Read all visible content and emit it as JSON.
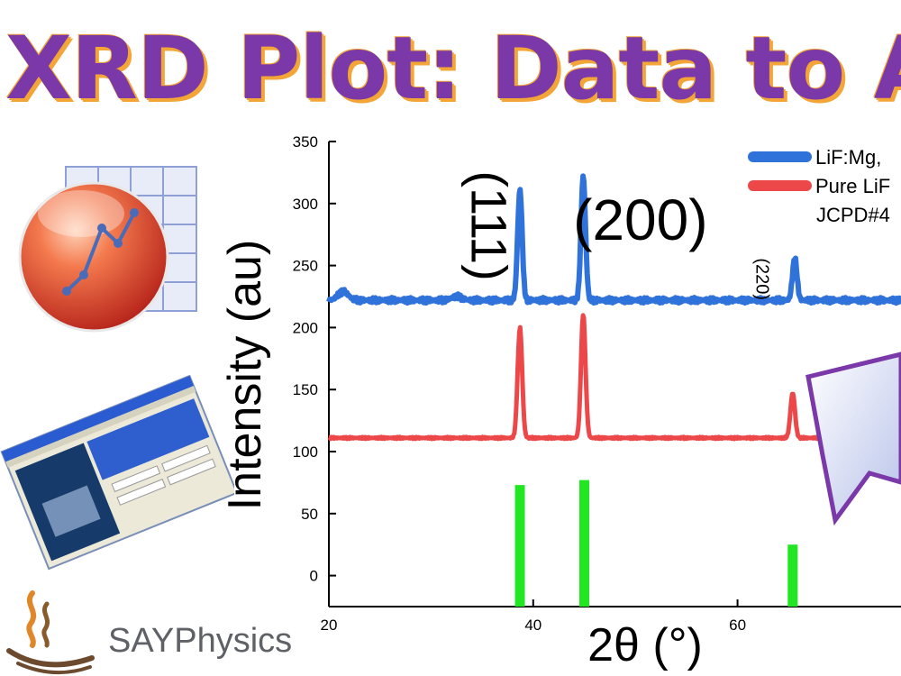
{
  "page": {
    "title": "XRD Plot: Data to A"
  },
  "brand": {
    "name": "SAYPhysics",
    "logo_icon": "steam-cup-icon"
  },
  "icons": {
    "spreadsheet_chart": "spreadsheet-chart-icon",
    "software_window": "software-window-icon",
    "callout": "callout-arrow-icon"
  },
  "colors": {
    "title": "#7a38a8",
    "title_outline": "#f3a637",
    "doped": "#2f72d9",
    "pure": "#ec4749",
    "reference": "#22e622"
  },
  "chart_data": {
    "type": "line",
    "xlabel": "2θ (°)",
    "ylabel": "Intensity (au)",
    "xlim": [
      20,
      76
    ],
    "ylim": [
      -25,
      350
    ],
    "xticks": [
      20,
      40,
      60
    ],
    "yticks": [
      0,
      50,
      100,
      150,
      200,
      250,
      300,
      350
    ],
    "legend_position": "top-right",
    "legend": [
      "LiF:Mg,",
      "Pure LiF",
      "JCPD#4"
    ],
    "peak_labels": [
      {
        "text": "(111)",
        "x": 35.3,
        "y": 282
      },
      {
        "text": "(200)",
        "x": 50.5,
        "y": 283
      },
      {
        "text": "(220)",
        "x": 62.3,
        "y": 239
      }
    ],
    "series": [
      {
        "name": "LiF:Mg,",
        "color": "#2f72d9",
        "baseline": 222,
        "peaks": [
          [
            21.4,
            7
          ],
          [
            32.5,
            3
          ],
          [
            38.7,
            89
          ],
          [
            44.9,
            100
          ],
          [
            65.6,
            34
          ]
        ]
      },
      {
        "name": "Pure LiF",
        "color": "#ec4749",
        "baseline": 111,
        "peaks": [
          [
            38.7,
            89
          ],
          [
            44.9,
            100
          ],
          [
            65.4,
            36
          ]
        ]
      },
      {
        "name": "JCPD#4",
        "color": "#22e622",
        "baseline": -25,
        "sticks": [
          [
            38.7,
            98
          ],
          [
            45.0,
            102
          ],
          [
            65.4,
            50
          ]
        ]
      }
    ]
  }
}
